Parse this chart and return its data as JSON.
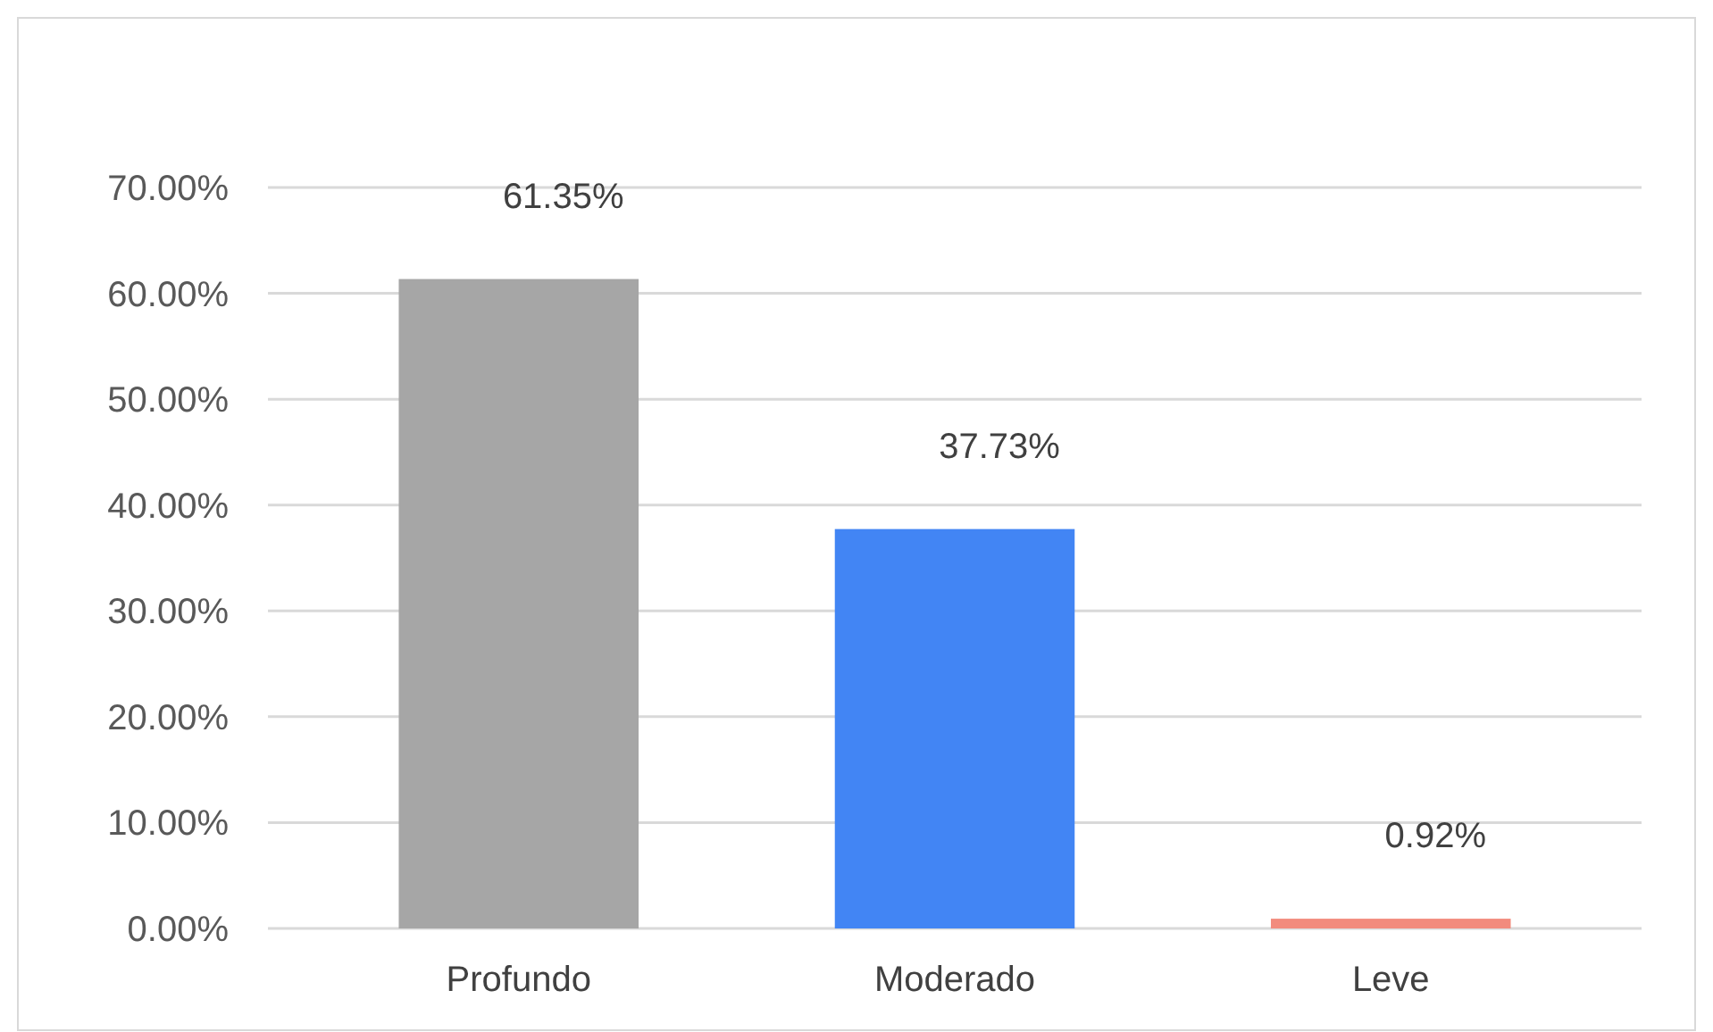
{
  "chart_data": {
    "type": "bar",
    "categories": [
      "Profundo",
      "Moderado",
      "Leve"
    ],
    "values": [
      61.35,
      37.73,
      0.92
    ],
    "colors": [
      "#a6a6a6",
      "#4285f4",
      "#f28b7d"
    ],
    "value_labels": [
      "61.35%",
      "37.73%",
      "0.92%"
    ],
    "ylim": [
      0,
      70
    ],
    "yticks": [
      {
        "value": 0,
        "label": "0.00%"
      },
      {
        "value": 10,
        "label": "10.00%"
      },
      {
        "value": 20,
        "label": "20.00%"
      },
      {
        "value": 30,
        "label": "30.00%"
      },
      {
        "value": 40,
        "label": "40.00%"
      },
      {
        "value": 50,
        "label": "50.00%"
      },
      {
        "value": 60,
        "label": "60.00%"
      },
      {
        "value": 70,
        "label": "70.00%"
      }
    ],
    "grid": "y"
  }
}
